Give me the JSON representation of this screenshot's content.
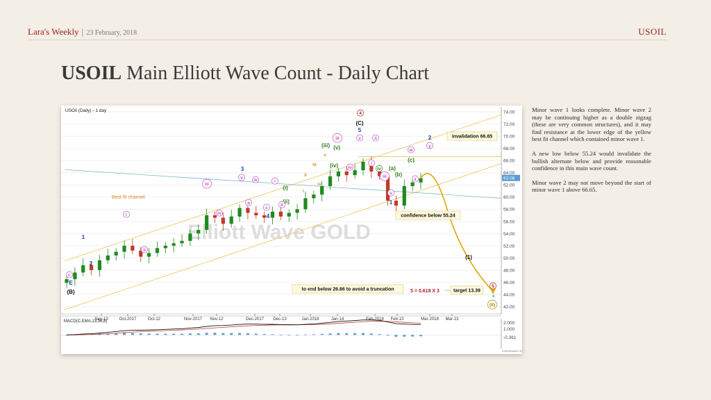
{
  "header": {
    "brand": "Lara's Weekly",
    "separator": "|",
    "date": "23 February, 2018",
    "ticker": "USOIL"
  },
  "slide_title": {
    "bold": "USOIL",
    "rest": "Main Elliott Wave Count - Daily Chart"
  },
  "notes": [
    "Minor wave 1 looks complete. Minor wave 2 may be continuing higher as a double zigzag (these are very common structures), and it may find resistance at the lower edge of the yellow best fit channel which contained minor wave 1.",
    "A new low below 55.24 would invalidate the bullish alternate below and provide reasonable confidence in this main wave count.",
    "Minor wave 2 may not move beyond the start of minor wave 1 above 66.65."
  ],
  "colors": {
    "up_candle": "#1f8a1f",
    "down_candle": "#c0392b",
    "channel": "#e8c35a",
    "trendline": "#7fb9c8",
    "projection": "#e0a800",
    "macd_line": "#111111",
    "signal_line": "#c0392b",
    "histogram": "#5b9bd5",
    "wave_pink": "#c050c0",
    "wave_blue": "#1f3f9f",
    "wave_green": "#2e7d1e",
    "wave_orange": "#d98a1a",
    "wave_red": "#b01e1e"
  },
  "chart_data": {
    "type": "candlestick",
    "title": "USOil (Daily) - 1 day",
    "watermark": "Elliott Wave GOLD",
    "indicator_label": "MACD(C,EMA,13,34,8)",
    "footer_tag": "motivewave 288",
    "x_ticks": [
      "Sep-13",
      "Oct-2017",
      "Oct-12",
      "Nov-2017",
      "Nov-12",
      "Dec-2017",
      "Dec-13",
      "Jan-2018",
      "Jan-14",
      "Feb-2018",
      "Feb-13",
      "Mar-2018",
      "Mar-13"
    ],
    "y_ticks": [
      "74.00",
      "72.00",
      "70.00",
      "68.00",
      "66.00",
      "64.00",
      "62.00",
      "60.00",
      "58.00",
      "56.00",
      "54.00",
      "52.00",
      "50.00",
      "48.00",
      "46.00",
      "44.00",
      "42.00"
    ],
    "ylim": [
      40.8,
      74.8
    ],
    "macd_ticks": [
      "2.000",
      "1.000",
      "-0.361"
    ],
    "macd_ylim": [
      -2.2,
      2.6
    ],
    "current_price_tag": "63.08",
    "dates": [
      "Aug-28",
      "Aug-31",
      "Sep-05",
      "Sep-08",
      "Sep-13",
      "Sep-18",
      "Sep-21",
      "Sep-26",
      "Sep-29",
      "Oct-04",
      "Oct-09",
      "Oct-12",
      "Oct-17",
      "Oct-20",
      "Oct-25",
      "Oct-30",
      "Nov-02",
      "Nov-07",
      "Nov-10",
      "Nov-15",
      "Nov-20",
      "Nov-23",
      "Nov-28",
      "Dec-01",
      "Dec-06",
      "Dec-11",
      "Dec-14",
      "Dec-19",
      "Dec-22",
      "Dec-28",
      "Jan-02",
      "Jan-05",
      "Jan-10",
      "Jan-15",
      "Jan-18",
      "Jan-23",
      "Jan-26",
      "Jan-31",
      "Feb-05",
      "Feb-08",
      "Feb-13",
      "Feb-16",
      "Feb-21",
      "Feb-23"
    ],
    "close": [
      46.5,
      47.6,
      48.8,
      48.0,
      49.6,
      50.4,
      51.0,
      52.0,
      51.2,
      50.2,
      50.8,
      51.6,
      52.0,
      52.4,
      52.8,
      54.0,
      54.6,
      57.0,
      56.6,
      55.6,
      56.8,
      58.2,
      57.4,
      57.0,
      56.6,
      57.6,
      56.8,
      57.4,
      58.0,
      59.8,
      60.4,
      61.8,
      63.4,
      64.2,
      63.6,
      64.4,
      65.8,
      64.2,
      63.4,
      59.4,
      58.6,
      61.8,
      62.4,
      63.1
    ],
    "waves": [
      {
        "text": "c",
        "style": "circle"
      },
      {
        "text": "E",
        "style": "plain"
      },
      {
        "text": "(B)",
        "style": "plain"
      },
      {
        "text": "1",
        "style": "plain"
      },
      {
        "text": "2",
        "style": "plain"
      },
      {
        "text": "i",
        "style": "circle"
      },
      {
        "text": "ii",
        "style": "circle"
      },
      {
        "text": "iii",
        "style": "circle"
      },
      {
        "text": "iv",
        "style": "circle"
      },
      {
        "text": "3",
        "style": "plain"
      },
      {
        "text": "v",
        "style": "circle"
      },
      {
        "text": "a",
        "style": "circle"
      },
      {
        "text": "b",
        "style": "circle"
      },
      {
        "text": "c",
        "style": "circle"
      },
      {
        "text": "4",
        "style": "plain"
      },
      {
        "text": "i",
        "style": "circle"
      },
      {
        "text": "(i)",
        "style": "plain"
      },
      {
        "text": "(ii)",
        "style": "plain"
      },
      {
        "text": "ii",
        "style": "circle"
      },
      {
        "text": "i",
        "style": "plain"
      },
      {
        "text": "ii",
        "style": "plain"
      },
      {
        "text": "iii",
        "style": "plain"
      },
      {
        "text": "iv",
        "style": "plain"
      },
      {
        "text": "v",
        "style": "plain"
      },
      {
        "text": "(iii)",
        "style": "plain"
      },
      {
        "text": "(iv)",
        "style": "plain"
      },
      {
        "text": "(v)",
        "style": "plain"
      },
      {
        "text": "iii",
        "style": "circle"
      },
      {
        "text": "iv",
        "style": "circle"
      },
      {
        "text": "v",
        "style": "circle"
      },
      {
        "text": "5",
        "style": "plain"
      },
      {
        "text": "(C)",
        "style": "plain"
      },
      {
        "text": "4",
        "style": "circle"
      },
      {
        "text": "i",
        "style": "circle"
      },
      {
        "text": "ii",
        "style": "circle"
      },
      {
        "text": "iii",
        "style": "circle"
      },
      {
        "text": "iv",
        "style": "circle"
      },
      {
        "text": "v",
        "style": "circle"
      },
      {
        "text": "1",
        "style": "plain"
      },
      {
        "text": "(a)",
        "style": "plain"
      },
      {
        "text": "(b)",
        "style": "plain"
      },
      {
        "text": "(c)",
        "style": "plain"
      },
      {
        "text": "w",
        "style": "circle"
      },
      {
        "text": "x",
        "style": "circle"
      },
      {
        "text": "y",
        "style": "circle"
      },
      {
        "text": "2",
        "style": "plain"
      },
      {
        "text": "(1)",
        "style": "plain"
      },
      {
        "text": "5",
        "style": "circle"
      },
      {
        "text": "c",
        "style": "plain"
      },
      {
        "text": "(II)",
        "style": "circle"
      }
    ],
    "annotations": {
      "best_fit": "Best fit channel",
      "invalidation": "invalidation 66.65",
      "confidence": "confidence below 55.24",
      "truncation": "to end below 26.86 to avoid a truncation",
      "ratio": "5 = 0.618 X 3",
      "target": "target 13.39"
    }
  }
}
